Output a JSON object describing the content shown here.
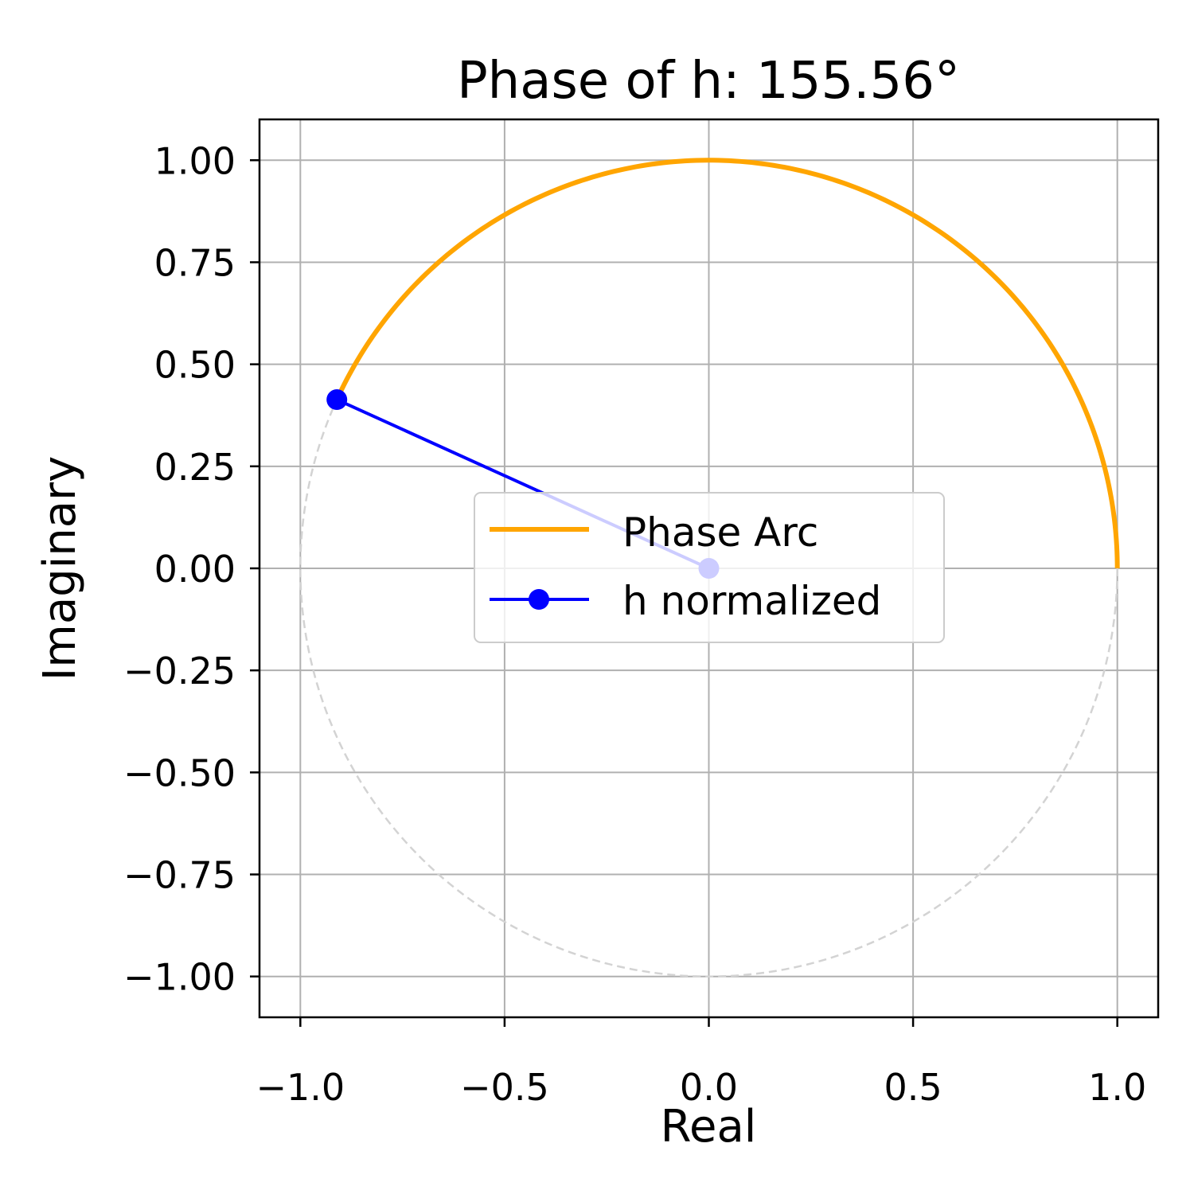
{
  "chart_data": {
    "type": "line",
    "title": "Phase of h: 155.56°",
    "xlabel": "Real",
    "ylabel": "Imaginary",
    "xlim": [
      -1.1,
      1.1
    ],
    "ylim": [
      -1.1,
      1.1
    ],
    "grid": true,
    "legend_position": "center",
    "x_ticks": [
      -1.0,
      -0.5,
      0.0,
      0.5,
      1.0
    ],
    "x_tick_labels": [
      "−1.0",
      "−0.5",
      "0.0",
      "0.5",
      "1.0"
    ],
    "y_ticks": [
      1.0,
      0.75,
      0.5,
      0.25,
      0.0,
      -0.25,
      -0.5,
      -0.75,
      -1.0
    ],
    "y_tick_labels": [
      "1.00",
      "0.75",
      "0.50",
      "0.25",
      "0.00",
      "−0.25",
      "−0.50",
      "−0.75",
      "−1.00"
    ],
    "unit_circle": {
      "center": [
        0,
        0
      ],
      "radius": 1,
      "style": "dashed",
      "color": "#d3d3d3"
    },
    "series": [
      {
        "name": "Phase Arc",
        "kind": "arc",
        "color": "#ffa500",
        "radius": 1,
        "start_angle_deg": 0,
        "end_angle_deg": 155.56
      },
      {
        "name": "h normalized",
        "kind": "line-markers",
        "color": "#0000ff",
        "x": [
          0,
          -0.9106
        ],
        "y": [
          0,
          0.4134
        ]
      }
    ]
  }
}
